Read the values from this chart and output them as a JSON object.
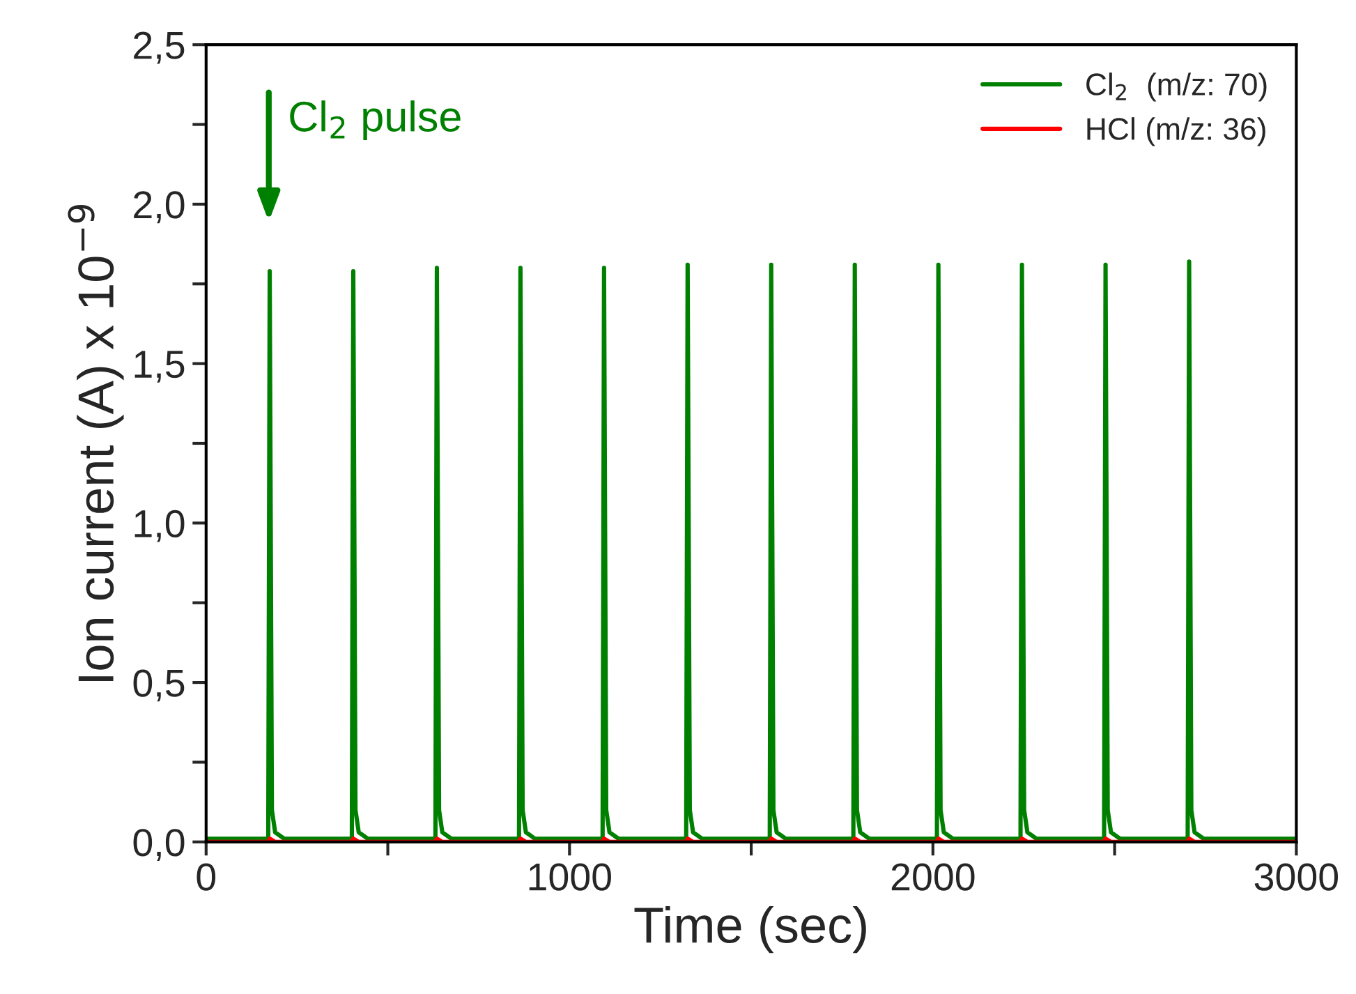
{
  "chart_data": {
    "type": "line",
    "xlabel": "Time (sec)",
    "ylabel": "Ion current (A) x 10$^{−9}$",
    "xlim": [
      0,
      3000
    ],
    "xticks": [
      0,
      {
        "value": 500,
        "label": null
      },
      1000,
      {
        "value": 1500,
        "label": null
      },
      2000,
      {
        "value": 2500,
        "label": null
      },
      3000
    ],
    "ylim": [
      0,
      2.5
    ],
    "yticks": [
      {
        "value": 0,
        "label": "0,0"
      },
      {
        "value": 0.25,
        "label": null
      },
      {
        "value": 0.5,
        "label": "0,5"
      },
      {
        "value": 0.75,
        "label": null
      },
      {
        "value": 1.0,
        "label": "1,0"
      },
      {
        "value": 1.25,
        "label": null
      },
      {
        "value": 1.5,
        "label": "1,5"
      },
      {
        "value": 1.75,
        "label": null
      },
      {
        "value": 2.0,
        "label": "2,0"
      },
      {
        "value": 2.25,
        "label": null
      },
      {
        "value": 2.5,
        "label": "2,5"
      }
    ],
    "grid": false,
    "legend": "top right",
    "marker": "none",
    "line_style": "solid",
    "annotations": [
      "Cl$_{2}$ pulse"
    ],
    "series": [
      {
        "name": "Cl$_{2}$  (m/z: 70)",
        "color": "#008000",
        "x": [
          0,
          171,
          175,
          181,
          190,
          215,
          401,
          405,
          411,
          420,
          445,
          631,
          635,
          641,
          650,
          675,
          861,
          865,
          871,
          880,
          905,
          1091,
          1095,
          1101,
          1110,
          1135,
          1321,
          1325,
          1331,
          1340,
          1365,
          1551,
          1555,
          1561,
          1570,
          1595,
          1781,
          1785,
          1791,
          1800,
          1825,
          2011,
          2015,
          2021,
          2030,
          2055,
          2241,
          2245,
          2251,
          2260,
          2285,
          2471,
          2475,
          2481,
          2490,
          2515,
          2701,
          2705,
          2711,
          2720,
          2745,
          3000
        ],
        "values": [
          0.01,
          0.01,
          1.79,
          0.1,
          0.03,
          0.01,
          0.01,
          1.79,
          0.1,
          0.03,
          0.01,
          0.01,
          1.8,
          0.1,
          0.03,
          0.01,
          0.01,
          1.8,
          0.1,
          0.03,
          0.01,
          0.01,
          1.8,
          0.1,
          0.03,
          0.01,
          0.01,
          1.81,
          0.1,
          0.03,
          0.01,
          0.01,
          1.81,
          0.1,
          0.03,
          0.01,
          0.01,
          1.81,
          0.1,
          0.03,
          0.01,
          0.01,
          1.81,
          0.1,
          0.03,
          0.01,
          0.01,
          1.81,
          0.1,
          0.03,
          0.01,
          0.01,
          1.81,
          0.1,
          0.03,
          0.01,
          0.01,
          1.82,
          0.1,
          0.03,
          0.01,
          0.01
        ]
      },
      {
        "name": "HCl (m/z: 36)",
        "color": "#ff0000",
        "x": [
          0,
          171,
          175,
          190,
          401,
          405,
          420,
          631,
          635,
          650,
          861,
          865,
          880,
          1091,
          1095,
          1110,
          1321,
          1325,
          1340,
          1551,
          1555,
          1570,
          1781,
          1785,
          1800,
          2011,
          2015,
          2030,
          2241,
          2245,
          2260,
          2471,
          2475,
          2490,
          2701,
          2705,
          2720,
          3000
        ],
        "values": [
          0,
          0,
          0.01,
          0,
          0,
          0.01,
          0,
          0,
          0.01,
          0,
          0,
          0.01,
          0,
          0,
          0.01,
          0,
          0,
          0.01,
          0,
          0,
          0.01,
          0,
          0,
          0.01,
          0,
          0,
          0.01,
          0,
          0,
          0.01,
          0,
          0,
          0.01,
          0,
          0,
          0.01,
          0,
          0
        ]
      }
    ]
  }
}
